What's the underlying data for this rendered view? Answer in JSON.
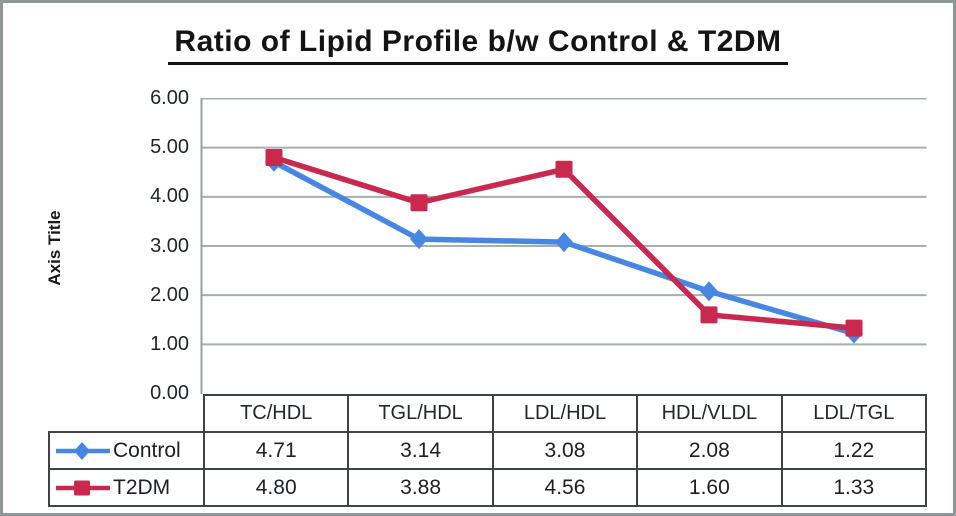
{
  "title": "Ratio of Lipid Profile b/w Control & T2DM",
  "y_axis": {
    "title": "Axis Title",
    "tick_labels": [
      "6.00",
      "5.00",
      "4.00",
      "3.00",
      "2.00",
      "1.00",
      "0.00"
    ]
  },
  "chart_data": {
    "type": "line",
    "title": "Ratio of Lipid Profile b/w Control & T2DM",
    "categories": [
      "TC/HDL",
      "TGL/HDL",
      "LDL/HDL",
      "HDL/VLDL",
      "LDL/TGL"
    ],
    "series": [
      {
        "name": "Control",
        "values": [
          4.71,
          3.14,
          3.08,
          2.08,
          1.22
        ],
        "color": "#4787E1",
        "marker": "diamond"
      },
      {
        "name": "T2DM",
        "values": [
          4.8,
          3.88,
          4.56,
          1.6,
          1.33
        ],
        "color": "#C9294E",
        "marker": "square"
      }
    ],
    "xlabel": "",
    "ylabel": "Axis Title",
    "ylim": [
      0,
      6
    ],
    "ytick_step": 1,
    "grid": true,
    "legend_position": "data-table-left"
  },
  "table": {
    "columns": [
      "TC/HDL",
      "TGL/HDL",
      "LDL/HDL",
      "HDL/VLDL",
      "LDL/TGL"
    ],
    "rows": [
      {
        "label": "Control",
        "values": [
          "4.71",
          "3.14",
          "3.08",
          "2.08",
          "1.22"
        ]
      },
      {
        "label": "T2DM",
        "values": [
          "4.80",
          "3.88",
          "4.56",
          "1.60",
          "1.33"
        ]
      }
    ]
  },
  "colors": {
    "control_series": "#4787E1",
    "t2dm_series": "#C9294E",
    "gridline": "#A7AFAC",
    "axis_line": "#97A19D",
    "table_border": "#3E4245",
    "text": "#1d1f22",
    "frame_border": "#8C9896"
  }
}
